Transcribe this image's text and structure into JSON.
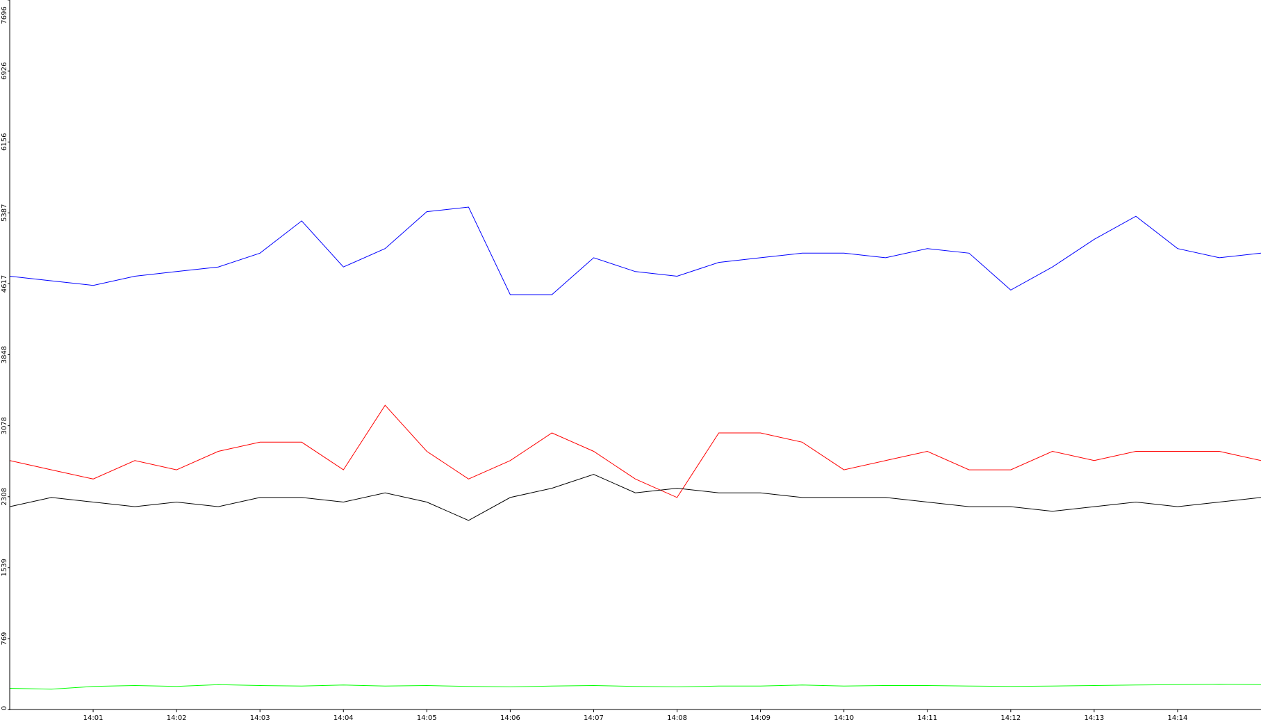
{
  "chart_data": {
    "type": "line",
    "title": "",
    "xlabel": "",
    "ylabel": "",
    "ylim": [
      0,
      7696
    ],
    "xlim_minutes": [
      0.0,
      15.0
    ],
    "x_axis_start": "14:00",
    "x_axis_end": "14:15",
    "y_ticks": [
      "0",
      "769",
      "1539",
      "2308",
      "3078",
      "3848",
      "4617",
      "5387",
      "6156",
      "6926",
      "7696"
    ],
    "x_ticks": [
      "14:01",
      "14:02",
      "14:03",
      "14:04",
      "14:05",
      "14:06",
      "14:07",
      "14:08",
      "14:09",
      "14:10",
      "14:11",
      "14:12",
      "14:13",
      "14:14"
    ],
    "grid": false,
    "legend": "none",
    "series": [
      {
        "color": "#0000ff",
        "x": [
          "14:00",
          "14:00:30",
          "14:01",
          "14:01:30",
          "14:02",
          "14:02:30",
          "14:03",
          "14:03:30",
          "14:04",
          "14:04:30",
          "14:05",
          "14:05:30",
          "14:06",
          "14:06:30",
          "14:07",
          "14:07:30",
          "14:08",
          "14:08:30",
          "14:09",
          "14:09:30",
          "14:10",
          "14:10:30",
          "14:11",
          "14:11:30",
          "14:12",
          "14:12:30",
          "14:13",
          "14:13:30",
          "14:14",
          "14:14:30",
          "14:15"
        ],
        "values": [
          4700,
          4650,
          4600,
          4700,
          4750,
          4800,
          4950,
          5300,
          4800,
          5000,
          5400,
          5450,
          4500,
          4500,
          4900,
          4750,
          4700,
          4850,
          4900,
          4950,
          4950,
          4900,
          5000,
          4950,
          4550,
          4800,
          5100,
          5350,
          5000,
          4900,
          4950
        ]
      },
      {
        "color": "#ff0000",
        "x": [
          "14:00",
          "14:00:30",
          "14:01",
          "14:01:30",
          "14:02",
          "14:02:30",
          "14:03",
          "14:03:30",
          "14:04",
          "14:04:30",
          "14:05",
          "14:05:30",
          "14:06",
          "14:06:30",
          "14:07",
          "14:07:30",
          "14:08",
          "14:08:30",
          "14:09",
          "14:09:30",
          "14:10",
          "14:10:30",
          "14:11",
          "14:11:30",
          "14:12",
          "14:12:30",
          "14:13",
          "14:13:30",
          "14:14",
          "14:14:30",
          "14:15"
        ],
        "values": [
          2700,
          2600,
          2500,
          2700,
          2600,
          2800,
          2900,
          2900,
          2600,
          3300,
          2800,
          2500,
          2700,
          3000,
          2800,
          2500,
          2300,
          3000,
          3000,
          2900,
          2600,
          2700,
          2800,
          2600,
          2600,
          2800,
          2700,
          2800,
          2800,
          2800,
          2700
        ]
      },
      {
        "color": "#000000",
        "x": [
          "14:00",
          "14:00:30",
          "14:01",
          "14:01:30",
          "14:02",
          "14:02:30",
          "14:03",
          "14:03:30",
          "14:04",
          "14:04:30",
          "14:05",
          "14:05:30",
          "14:06",
          "14:06:30",
          "14:07",
          "14:07:30",
          "14:08",
          "14:08:30",
          "14:09",
          "14:09:30",
          "14:10",
          "14:10:30",
          "14:11",
          "14:11:30",
          "14:12",
          "14:12:30",
          "14:13",
          "14:13:30",
          "14:14",
          "14:14:30",
          "14:15"
        ],
        "values": [
          2200,
          2300,
          2250,
          2200,
          2250,
          2200,
          2300,
          2300,
          2250,
          2350,
          2250,
          2050,
          2300,
          2400,
          2550,
          2350,
          2400,
          2350,
          2350,
          2300,
          2300,
          2300,
          2250,
          2200,
          2200,
          2150,
          2200,
          2250,
          2200,
          2250,
          2300
        ]
      },
      {
        "color": "#00ff00",
        "x": [
          "14:00",
          "14:00:30",
          "14:01",
          "14:01:30",
          "14:02",
          "14:02:30",
          "14:03",
          "14:03:30",
          "14:04",
          "14:04:30",
          "14:05",
          "14:05:30",
          "14:06",
          "14:06:30",
          "14:07",
          "14:07:30",
          "14:08",
          "14:08:30",
          "14:09",
          "14:09:30",
          "14:10",
          "14:10:30",
          "14:11",
          "14:11:30",
          "14:12",
          "14:12:30",
          "14:13",
          "14:13:30",
          "14:14",
          "14:14:30",
          "14:15"
        ],
        "values": [
          230,
          220,
          250,
          260,
          250,
          270,
          260,
          255,
          265,
          255,
          260,
          250,
          245,
          255,
          260,
          250,
          245,
          255,
          255,
          265,
          255,
          260,
          260,
          255,
          250,
          255,
          260,
          265,
          270,
          275,
          270
        ]
      }
    ]
  }
}
